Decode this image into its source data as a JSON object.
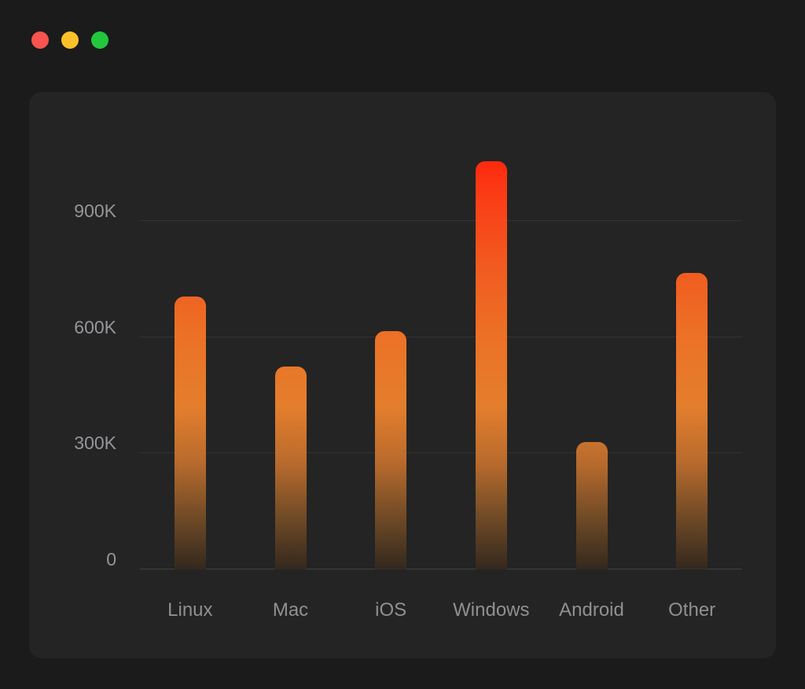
{
  "window": {
    "background": "#1b1b1b",
    "card_background": "#242424",
    "controls": [
      {
        "name": "close",
        "color": "#f8534e"
      },
      {
        "name": "minimize",
        "color": "#fcc12a"
      },
      {
        "name": "zoom",
        "color": "#23c73e"
      }
    ]
  },
  "chart_data": {
    "type": "bar",
    "title": "",
    "xlabel": "",
    "ylabel": "",
    "categories": [
      "Linux",
      "Mac",
      "iOS",
      "Windows",
      "Android",
      "Other"
    ],
    "values": [
      705000,
      525000,
      615000,
      1055000,
      330000,
      765000
    ],
    "y_ticks": [
      "900K",
      "600K",
      "300K",
      "0"
    ],
    "y_tick_values": [
      900000,
      600000,
      300000,
      0
    ],
    "ylim": [
      0,
      1111000
    ],
    "grid": true,
    "legend": false,
    "gridline_color": "rgba(255,255,255,0.07)",
    "axis_color": "rgba(255,255,255,0.14)",
    "tick_label_color": "#95969a",
    "bar_gradient": [
      "#ff1d0b",
      "#fb3a15",
      "#f2581f",
      "#ec7026",
      "#e47e2d",
      "#b96b2d",
      "#6f4a26",
      "#33281d"
    ],
    "bar_gradient_positions": [
      0,
      12,
      28,
      45,
      62,
      75,
      88,
      100
    ]
  }
}
